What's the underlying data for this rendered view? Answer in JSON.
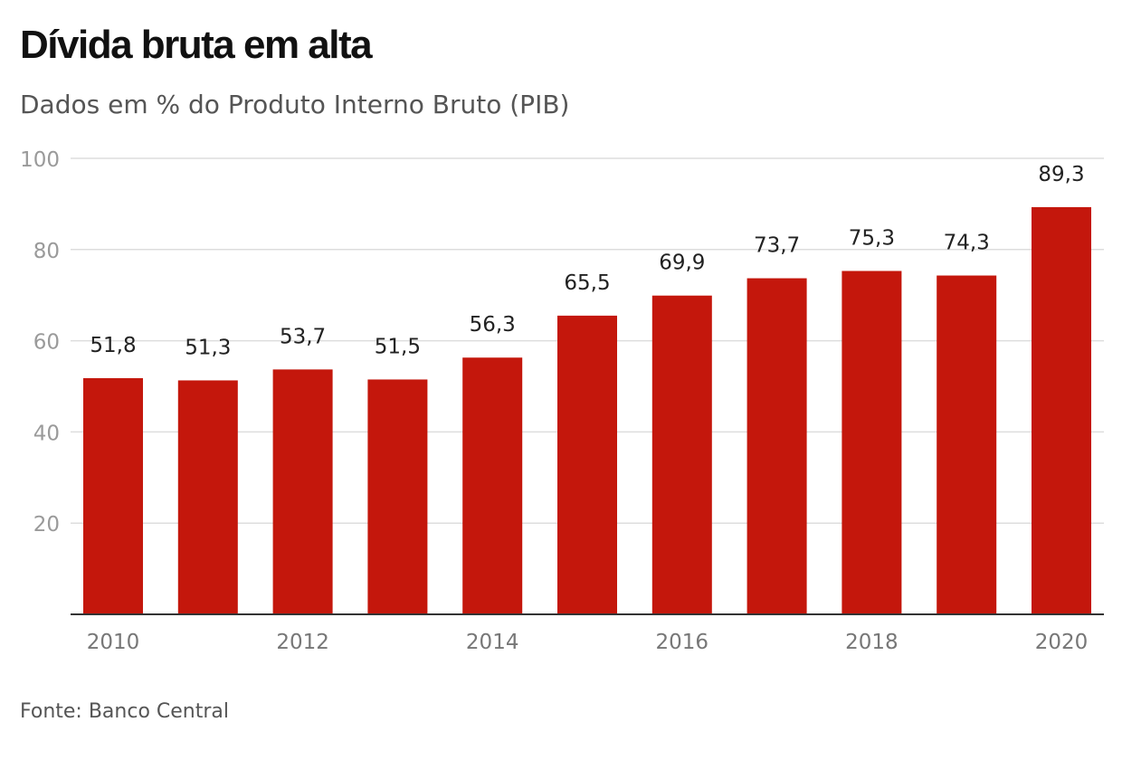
{
  "title": "Dívida bruta em alta",
  "subtitle": "Dados em % do Produto Interno Bruto (PIB)",
  "source": "Fonte: Banco Central",
  "chart_data": {
    "type": "bar",
    "categories": [
      "2010",
      "2011",
      "2012",
      "2013",
      "2014",
      "2015",
      "2016",
      "2017",
      "2018",
      "2019",
      "2020"
    ],
    "values": [
      51.8,
      51.3,
      53.7,
      51.5,
      56.3,
      65.5,
      69.9,
      73.7,
      75.3,
      74.3,
      89.3
    ],
    "data_labels": [
      "51,8",
      "51,3",
      "53,7",
      "51,5",
      "56,3",
      "65,5",
      "69,9",
      "73,7",
      "75,3",
      "74,3",
      "89,3"
    ],
    "x_tick_labels": [
      "2010",
      "",
      "2012",
      "",
      "2014",
      "",
      "2016",
      "",
      "2018",
      "",
      "2020"
    ],
    "y_ticks": [
      20,
      40,
      60,
      80,
      100
    ],
    "y_tick_labels": [
      "20",
      "40",
      "60",
      "80",
      "100"
    ],
    "ylim": [
      0,
      100
    ],
    "grid": true,
    "xlabel": "",
    "ylabel": "",
    "bar_color": "#c4170c",
    "grid_color": "#dddddd",
    "axis_color": "#333333"
  }
}
